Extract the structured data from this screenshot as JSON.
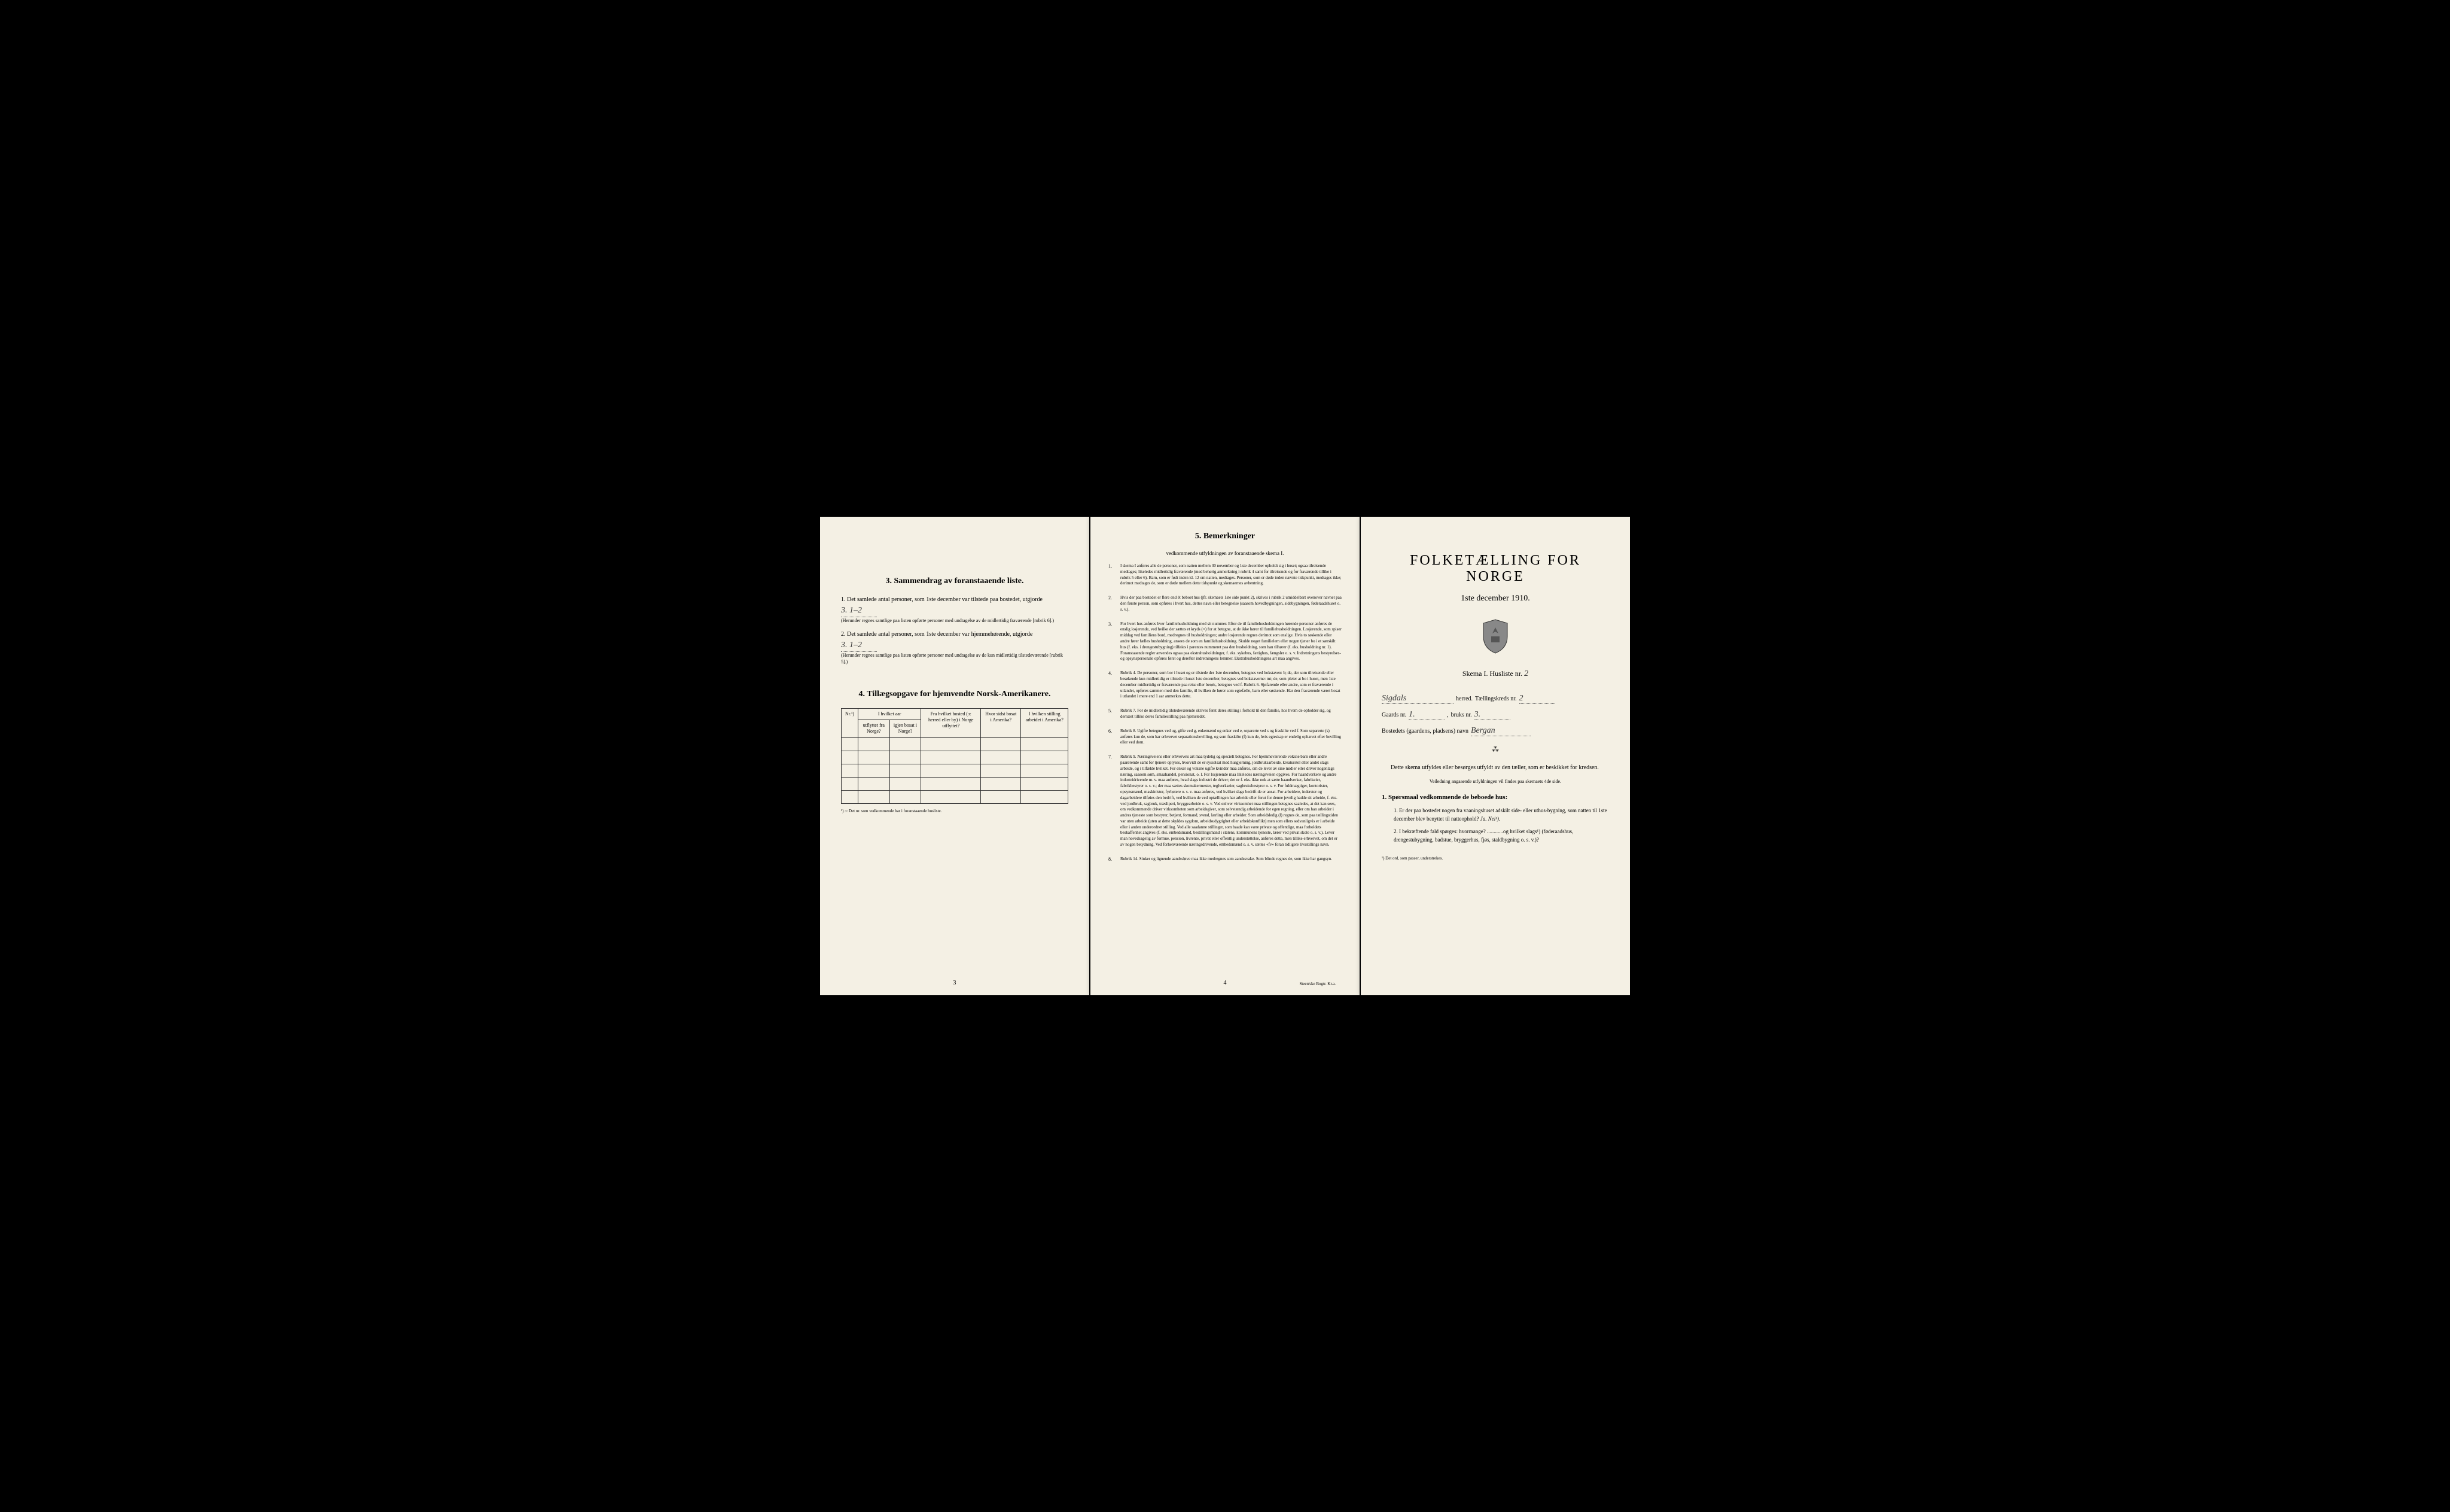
{
  "page_left": {
    "section3": {
      "title": "3.   Sammendrag av foranstaaende liste.",
      "item1": {
        "num": "1.",
        "text": "Det samlede antal personer, som 1ste december var tilstede paa bostedet, utgjorde",
        "value": "3.    1–2",
        "note": "(Herunder regnes samtlige paa listen opførte personer med undtagelse av de midlertidig fraværende [rubrik 6].)"
      },
      "item2": {
        "num": "2.",
        "text": "Det samlede antal personer, som 1ste december var hjemmehørende, utgjorde",
        "value": "3.    1–2",
        "note": "(Herunder regnes samtlige paa listen opførte personer med undtagelse av de kun midlertidig tilstedeværende [rubrik 5].)"
      }
    },
    "section4": {
      "title": "4.   Tillægsopgave for hjemvendte Norsk-Amerikanere.",
      "headers": {
        "col1": "Nr.¹)",
        "col2a": "I hvilket aar",
        "col2b": "utflyttet fra Norge?",
        "col2c": "igjen bosat i Norge?",
        "col3": "Fra hvilket bosted (ɔ: herred eller by) i Norge utflyttet?",
        "col4": "Hvor sidst bosat i Amerika?",
        "col5": "I hvilken stilling arbeidet i Amerika?"
      },
      "footnote": "¹) ɔ: Det nr. som vedkommende har i foranstaaende husliste."
    },
    "pagenum": "3"
  },
  "page_center": {
    "title": "5.   Bemerkninger",
    "subtitle": "vedkommende utfyldningen av foranstaaende skema I.",
    "items": [
      {
        "num": "1.",
        "text": "I skema I anføres alle de personer, som natten mellem 30 november og 1ste december opholdt sig i huset; ogsaa tilreisende medtages; likeledes midlertidig fraværende (med behørig anmerkning i rubrik 4 samt for tilreisende og for fraværende tillike i rubrik 5 eller 6). Barn, som er født inden kl. 12 om natten, medtages. Personer, som er døde inden nævnte tidspunkt, medtages ikke; derimot medtages de, som er døde mellem dette tidspunkt og skemaernes avhentning."
      },
      {
        "num": "2.",
        "text": "Hvis der paa bostedet er flere end ét beboet hus (jfr. skemaets 1ste side punkt 2), skrives i rubrik 2 umiddelbart ovenover navnet paa den første person, som opføres i hvert hus, dettes navn eller betegnelse (saasom hovedbygningen, sidebygningen, føderaadshuset o. s. v.)."
      },
      {
        "num": "3.",
        "text": "For hvert hus anføres hver familiehusholdning med sit nummer. Efter de til familiehusholdningen hørende personer anføres de enslig losjerende, ved hvilke der sættes et kryds (×) for at betegne, at de ikke hører til familiehusholdningen. Losjerende, som spiser middag ved familiens bord, medregnes til husholdningen; andre losjerende regnes derimot som enslige. Hvis to søskende eller andre fører fælles husholdning, ansees de som en familiehusholdning. Skulde noget familielem eller nogen tjener bo i et særskilt hus (f. eks. i drengestubygning) tilføies i parentes nummeret paa den husholdning, som han tilhører (f. eks. husholdning nr. 1).\n\nForanstaaende regler anvendes ogsaa paa ekstrahusholdninger, f. eks. sykehus, fattighus, fængsler o. s. v. Indretningens bestyrelses- og opsynspersonale opføres først og derefter indretningens lemmer. Ekstrahusholdningens art maa angives."
      },
      {
        "num": "4.",
        "text": "Rubrik 4. De personer, som bor i huset og er tilstede der 1ste december, betegnes ved bokstaven: b; de, der som tilreisende eller besøkende kun midlertidig er tilstede i huset 1ste december, betegnes ved bokstaverne: mt; de, som pleier at bo i huset, men 1ste december midlertidig er fraværende paa reise eller besøk, betegnes ved f.\n\nRubrik 6. Sjøfarende eller andre, som er fraværende i utlandet, opføres sammen med den familie, til hvilken de hører som egtefælle, barn eller søskende.\n\nHar den fraværende været bosat i utlandet i mere end 1 aar anmerkes dette."
      },
      {
        "num": "5.",
        "text": "Rubrik 7. For de midlertidig tilstedeværende skrives først deres stilling i forhold til den familie, hos hvem de opholder sig, og dernæst tillike deres familiestilling paa hjemstedet."
      },
      {
        "num": "6.",
        "text": "Rubrik 8. Ugifte betegnes ved ug, gifte ved g, enkemænd og enker ved e, separerte ved s og fraskilte ved f. Som separerte (s) anføres kun de, som har erhvervet separationsbevilling, og som fraskilte (f) kun de, hvis egteskap er endelig ophævet efter bevilling eller ved dom."
      },
      {
        "num": "7.",
        "text": "Rubrik 9. Næringsveiens eller erhvervets art maa tydelig og specielt betegnes.\n\nFor hjemmeværende voksne barn eller andre paarørende samt for tjenere oplyses, hvorvidt de er sysselsat med husgjerning, jordbruksarbeide, kreaturstel eller andet slags arbeide, og i tilfælde hvilket. For enker og voksne ugifte kvinder maa anføres, om de lever av sine midler eller driver nogenlags næring, saasom søm, smaahandel, pensionat, o. l.\n\nFor losjerende maa likeledes næringsveien opgives.\n\nFor haandverkere og andre industridrivende m. v. maa anføres, hvad slags industri de driver; det er f. eks. ikke nok at sætte haandverker, fabrikeier, fabrikbestyrer o. s. v.; der maa sættes skomakermester, teglverkseier, sagbruksbestyrer o. s. v.\n\nFor fuldmægtiger, kontorister, opsynsmænd, maskinister, fyrbøtere o. s. v. maa anføres, ved hvilket slags bedrift de er ansat.\n\nFor arbeidere, inderster og dagarbeidere tilføies den bedrift, ved hvilken de ved optællingen har arbeide eller forut for denne jevnlig hadde sit arbeide, f. eks. ved jordbruk, sagbruk, træsliperi, bryggearbeide o. s. v.\n\nVed enhver virksomhet maa stillingen betegnes saaledes, at det kan sees, om vedkommende driver virksomheten som arbeidsgiver, som selvstændig arbeidende for egen regning, eller om han arbeider i andres tjeneste som bestyrer, betjent, formand, svend, lærling eller arbeider.\n\nSom arbeidsledig (l) regnes de, som paa tællingstiden var uten arbeide (uten at dette skyldes sygdom, arbeidsudygtighet eller arbeidskonflikt) men som ellers sedvanligvis er i arbeide eller i anden underordnet stilling.\n\nVed alle saadanne stillinger, som baade kan være private og offentlige, maa forholdets beskaffenhet angives (f. eks. embedsmand, bestillingsmand i statens, kommunens tjeneste, lærer ved privat skole o. s. v.).\n\nLever man hovedsagelig av formue, pension, livrente, privat eller offentlig understøttelse, anføres dette, men tillike erhvervet, om det er av nogen betydning.\n\nVed forhenværende næringsdrivende, embedsmænd o. s. v. sættes «fv» foran tidligere livsstillings navn."
      },
      {
        "num": "8.",
        "text": "Rubrik 14. Sinker og lignende aandssløve maa ikke medregnes som aandssvake.\n\nSom blinde regnes de, som ikke har gangsyn."
      }
    ],
    "pagenum": "4",
    "printer": "Steen'ske Bogtr.   Kr.a."
  },
  "page_right": {
    "title": "FOLKETÆLLING FOR NORGE",
    "date": "1ste december 1910.",
    "skema": "Skema I.   Husliste nr.",
    "skema_value": "2",
    "herred_label": "herred.",
    "herred_value": "Sigdals",
    "kreds_label": "Tællingskreds nr.",
    "kreds_value": "2",
    "gaard_label": "Gaards nr.",
    "gaard_value": "1.",
    "bruk_label": "bruks nr.",
    "bruk_value": "3.",
    "bosted_label": "Bostedets (gaardens, pladsens) navn",
    "bosted_value": "Bergan",
    "intro": "Dette skema utfyldes eller besørges utfyldt av den tæller, som er beskikket for kredsen.",
    "intro_note": "Veiledning angaaende utfyldningen vil findes paa skemaets 4de side.",
    "q_title": "1. Spørsmaal vedkommende de beboede hus:",
    "q1": {
      "num": "1.",
      "text": "Er der paa bostedet nogen fra vaaningshuset adskilt side- eller uthus-bygning, som natten til 1ste december blev benyttet til natteophold?",
      "answer": "Ja.   Nei¹)."
    },
    "q2": {
      "num": "2.",
      "text": "I bekræftende fald spørges: hvormange? ............og hvilket slags¹) (føderaadshus, drengestubygning, badstue, bryggerhus, fjøs, staldbygning o. s. v.)?"
    },
    "footnote": "¹) Det ord, som passer, understrekes."
  }
}
